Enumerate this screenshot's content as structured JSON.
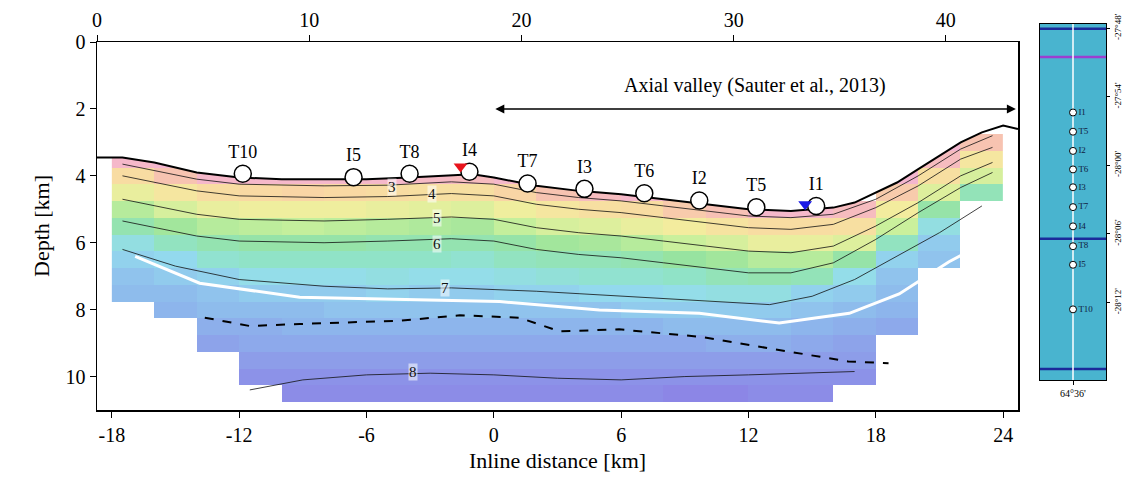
{
  "chart_data": {
    "type": "velocity_section",
    "x_label": "Inline distance [km]",
    "y_label": "Depth [km]",
    "xlim": [
      -18.7,
      24.7
    ],
    "xticks": [
      -18,
      -12,
      -6,
      0,
      6,
      12,
      18,
      24
    ],
    "x2lim": [
      0,
      43.4
    ],
    "x2ticks": [
      0,
      10,
      20,
      30,
      40
    ],
    "ylim": [
      11,
      0
    ],
    "yticks": [
      0,
      2,
      4,
      6,
      8,
      10
    ],
    "velocity": {
      "x": [
        -17,
        -15,
        -13,
        -11,
        -9,
        -7,
        -5,
        -3,
        -1,
        1,
        3,
        5,
        7,
        9,
        11,
        13,
        15,
        17,
        19,
        21,
        23
      ],
      "depth": [
        3,
        3.5,
        4,
        4.5,
        5,
        5.5,
        6,
        6.5,
        7,
        7.5,
        8,
        8.5,
        9,
        9.5,
        10,
        10.5
      ],
      "z": [
        [
          null,
          null,
          null,
          null,
          null,
          null,
          null,
          null,
          null,
          null,
          null,
          null,
          null,
          null,
          null,
          null,
          null,
          null,
          null,
          2.6,
          3.2
        ],
        [
          2.7,
          2.6,
          null,
          null,
          null,
          null,
          null,
          null,
          null,
          null,
          null,
          null,
          null,
          null,
          null,
          null,
          null,
          null,
          null,
          2.9,
          4.2
        ],
        [
          3.9,
          3.2,
          2.7,
          2.7,
          2.7,
          2.7,
          2.7,
          2.8,
          2.9,
          2.7,
          null,
          null,
          null,
          null,
          null,
          null,
          null,
          null,
          2.6,
          4.0,
          4.9
        ],
        [
          4.6,
          4.2,
          3.9,
          3.8,
          3.7,
          3.8,
          3.9,
          4.0,
          4.0,
          3.7,
          3.2,
          2.9,
          2.7,
          2.6,
          null,
          null,
          null,
          null,
          3.4,
          4.8,
          6.2
        ],
        [
          5.4,
          4.9,
          4.6,
          4.5,
          4.5,
          4.5,
          4.6,
          4.7,
          4.8,
          4.5,
          4.2,
          4.0,
          3.9,
          3.4,
          3.1,
          2.7,
          2.7,
          2.9,
          4.4,
          6.0,
          null
        ],
        [
          6.1,
          5.7,
          5.4,
          5.3,
          5.2,
          5.3,
          5.4,
          5.5,
          5.6,
          5.2,
          4.9,
          4.8,
          4.6,
          4.4,
          4.1,
          3.9,
          3.9,
          4.0,
          5.1,
          6.7,
          null
        ],
        [
          6.7,
          6.3,
          6.1,
          6.0,
          6.0,
          6.0,
          6.1,
          6.1,
          6.1,
          6.0,
          5.7,
          5.6,
          5.4,
          5.1,
          4.9,
          4.6,
          4.6,
          4.8,
          6.3,
          7.1,
          null
        ],
        [
          7.0,
          6.9,
          6.5,
          6.4,
          6.4,
          6.4,
          6.4,
          6.4,
          6.5,
          6.3,
          6.2,
          6.2,
          6.1,
          5.9,
          5.7,
          5.4,
          5.4,
          6.0,
          7.0,
          7.2,
          null
        ],
        [
          7.2,
          7.1,
          7.0,
          6.8,
          6.8,
          6.8,
          6.7,
          6.8,
          6.8,
          6.7,
          6.6,
          6.5,
          6.5,
          6.4,
          6.2,
          6.1,
          6.2,
          6.8,
          7.2,
          null,
          null
        ],
        [
          7.3,
          7.3,
          7.2,
          7.1,
          7.1,
          7.1,
          7.0,
          7.1,
          7.1,
          7.0,
          7.0,
          6.9,
          6.9,
          6.8,
          6.7,
          6.7,
          7.0,
          7.1,
          7.3,
          null,
          null
        ],
        [
          null,
          7.4,
          7.3,
          7.3,
          7.3,
          7.2,
          7.2,
          7.2,
          7.2,
          7.2,
          7.2,
          7.2,
          7.1,
          7.1,
          7.1,
          7.1,
          7.2,
          7.3,
          7.4,
          null,
          null
        ],
        [
          null,
          null,
          7.5,
          7.5,
          7.4,
          7.4,
          7.4,
          7.4,
          7.4,
          7.4,
          7.4,
          7.4,
          7.4,
          7.3,
          7.3,
          7.3,
          7.4,
          7.5,
          7.6,
          null,
          null
        ],
        [
          null,
          null,
          7.7,
          7.6,
          7.6,
          7.6,
          7.6,
          7.6,
          7.6,
          7.6,
          7.6,
          7.6,
          7.6,
          7.6,
          7.5,
          7.5,
          7.6,
          7.7,
          null,
          null,
          null
        ],
        [
          null,
          null,
          null,
          7.8,
          7.8,
          7.8,
          7.8,
          7.8,
          7.8,
          7.8,
          7.8,
          7.8,
          7.8,
          7.8,
          7.8,
          7.8,
          7.8,
          7.8,
          null,
          null,
          null
        ],
        [
          null,
          null,
          null,
          8.0,
          8.0,
          8.0,
          8.0,
          8.0,
          8.0,
          8.0,
          8.0,
          8.0,
          8.0,
          8.0,
          8.0,
          8.0,
          8.0,
          8.0,
          null,
          null,
          null
        ],
        [
          null,
          null,
          null,
          null,
          8.1,
          8.1,
          8.1,
          8.1,
          8.1,
          8.1,
          8.1,
          8.1,
          8.1,
          8.2,
          8.2,
          8.1,
          8.1,
          null,
          null,
          null,
          null
        ]
      ]
    },
    "contours": [
      {
        "value": 3,
        "label_x": -4.8,
        "label_depth": 4.33,
        "x": [
          -17.5,
          -14,
          -12,
          -8,
          -5,
          -2,
          0,
          2,
          4,
          6,
          8,
          10,
          12,
          14,
          16,
          18,
          20,
          22,
          23.5
        ],
        "depth": [
          3.65,
          4.1,
          4.25,
          4.3,
          4.28,
          4.18,
          4.25,
          4.5,
          4.65,
          4.75,
          4.9,
          5.05,
          5.2,
          5.25,
          5.15,
          4.7,
          4.0,
          3.2,
          2.8
        ]
      },
      {
        "value": 4,
        "label_x": -2.9,
        "label_depth": 4.55,
        "x": [
          -17.5,
          -14,
          -12,
          -8,
          -5,
          -2,
          0,
          2,
          4,
          6,
          8,
          10,
          12,
          14,
          16,
          18,
          20,
          22,
          23.5
        ],
        "depth": [
          4.0,
          4.45,
          4.6,
          4.65,
          4.62,
          4.53,
          4.6,
          4.85,
          5.0,
          5.1,
          5.25,
          5.4,
          5.55,
          5.6,
          5.45,
          4.95,
          4.3,
          3.5,
          3.15
        ]
      },
      {
        "value": 5,
        "label_x": -2.7,
        "label_depth": 5.26,
        "x": [
          -17.5,
          -14,
          -12,
          -8,
          -5,
          -2,
          0,
          2,
          4,
          6,
          8,
          10,
          12,
          14,
          16,
          18,
          20,
          22,
          23.5
        ],
        "depth": [
          4.7,
          5.15,
          5.3,
          5.35,
          5.3,
          5.23,
          5.3,
          5.55,
          5.7,
          5.8,
          5.95,
          6.1,
          6.25,
          6.3,
          6.1,
          5.5,
          4.8,
          4.0,
          3.6
        ]
      },
      {
        "value": 6,
        "label_x": -2.7,
        "label_depth": 6.03,
        "x": [
          -17.5,
          -14,
          -12,
          -8,
          -5,
          -2,
          0,
          2,
          4,
          6,
          8,
          10,
          12,
          14,
          16,
          18,
          20,
          22,
          23.5
        ],
        "depth": [
          5.35,
          5.8,
          5.95,
          6.0,
          5.95,
          5.88,
          5.95,
          6.2,
          6.35,
          6.45,
          6.6,
          6.75,
          6.9,
          6.9,
          6.6,
          5.9,
          5.1,
          4.35,
          3.9
        ]
      },
      {
        "value": 7,
        "label_x": -2.3,
        "label_depth": 7.34,
        "x": [
          -17.5,
          -15,
          -12,
          -8,
          -5,
          -2,
          2,
          6,
          10,
          13,
          15,
          17,
          19,
          21,
          23
        ],
        "depth": [
          6.2,
          6.7,
          7.1,
          7.3,
          7.38,
          7.35,
          7.45,
          7.6,
          7.75,
          7.85,
          7.6,
          7.1,
          6.4,
          5.7,
          4.9
        ]
      },
      {
        "value": 8,
        "label_x": -3.8,
        "label_depth": 9.87,
        "x": [
          -11.5,
          -9,
          -6,
          -3,
          0,
          3,
          6,
          9,
          12,
          15,
          17
        ],
        "depth": [
          10.4,
          10.1,
          9.95,
          9.9,
          9.95,
          10.05,
          10.1,
          10.0,
          9.95,
          9.9,
          9.85
        ]
      }
    ],
    "lines": [
      {
        "color": "#ffffff",
        "line_style": "solid",
        "x": [
          -16.9,
          -13.86,
          -9.15,
          -4.44,
          0.27,
          4.97,
          9.68,
          13.45,
          16.75,
          19.1,
          21.45,
          23.34
        ],
        "depth": [
          6.41,
          7.21,
          7.63,
          7.69,
          7.76,
          8.01,
          8.11,
          8.4,
          8.11,
          7.53,
          6.57,
          5.93
        ]
      },
      {
        "color": "#000000",
        "line_style": "dashed",
        "x": [
          -13.62,
          -11.5,
          -9.15,
          -4.44,
          -1.6,
          1.2,
          3.1,
          5.9,
          9.7,
          13.5,
          16.7,
          18.6
        ],
        "depth": [
          8.24,
          8.49,
          8.43,
          8.33,
          8.17,
          8.24,
          8.65,
          8.59,
          8.81,
          9.2,
          9.55,
          9.6
        ]
      }
    ],
    "seafloor": {
      "color": "#000000",
      "x": [
        -18.7,
        -17.5,
        -16,
        -14,
        -12,
        -10,
        -8,
        -6,
        -4,
        -2,
        -1,
        0,
        2,
        4,
        6,
        8,
        10,
        12,
        14,
        15,
        16,
        17,
        18,
        19,
        20,
        21,
        22,
        23,
        24,
        24.7
      ],
      "depth": [
        3.45,
        3.45,
        3.6,
        3.9,
        4.05,
        4.1,
        4.1,
        4.1,
        4.05,
        3.98,
        3.95,
        4.05,
        4.3,
        4.45,
        4.55,
        4.7,
        4.85,
        5.0,
        5.05,
        5.0,
        4.95,
        4.8,
        4.5,
        4.2,
        3.8,
        3.4,
        3.0,
        2.7,
        2.5,
        2.6
      ]
    },
    "stations": {
      "color": "#ffffff",
      "marker": "circle",
      "labels": [
        "T10",
        "I5",
        "T8",
        "I4",
        "T7",
        "I3",
        "T6",
        "I2",
        "T5",
        "I1"
      ],
      "x": [
        -11.83,
        -6.61,
        -3.97,
        -1.15,
        1.59,
        4.27,
        7.09,
        9.68,
        12.37,
        15.19
      ],
      "depth": [
        3.94,
        4.04,
        3.94,
        3.88,
        4.23,
        4.39,
        4.52,
        4.74,
        4.94,
        4.9
      ]
    },
    "triangles": [
      {
        "x": -1.57,
        "depth": 3.72,
        "color": "#e8141c",
        "marker": "triangle-down"
      },
      {
        "x": 14.67,
        "depth": 4.85,
        "color": "#1a1ae6",
        "marker": "triangle-down"
      }
    ],
    "annotation": {
      "text": "Axial valley (Sauter et al., 2013)",
      "x": 12.3,
      "depth": 1.3,
      "arrow_x": [
        0,
        24.6
      ],
      "arrow_depth": 2.0
    },
    "inset": {
      "color": "#49b4cf",
      "lon_lim": [
        64.56,
        64.64
      ],
      "lon_ticks": [
        {
          "value": 64.6,
          "label": "64°36'"
        }
      ],
      "lat_lim": [
        -28.313,
        -27.794
      ],
      "lat_ticks": [
        {
          "value": -27.8,
          "label": "-27°48'"
        },
        {
          "value": -27.9,
          "label": "-27°54'"
        },
        {
          "value": -28.0,
          "label": "-28°00'"
        },
        {
          "value": -28.1,
          "label": "-28°06'"
        },
        {
          "value": -28.2,
          "label": "-28°12'"
        }
      ],
      "profile": {
        "lon": 64.6,
        "color": "#ffffff"
      },
      "lines": [
        {
          "lat": -27.801,
          "color": "#1b2a9a"
        },
        {
          "lat": -27.842,
          "color": "#9b3fd0"
        },
        {
          "lat": -28.107,
          "color": "#1b2a9a"
        },
        {
          "lat": -28.297,
          "color": "#1b2a9a"
        }
      ],
      "stations": {
        "color": "#ffffff",
        "marker": "circle",
        "labels": [
          "I1",
          "T5",
          "I2",
          "T6",
          "I3",
          "T7",
          "I4",
          "T8",
          "I5",
          "T10"
        ],
        "lat": [
          -27.923,
          -27.951,
          -27.979,
          -28.006,
          -28.032,
          -28.061,
          -28.089,
          -28.118,
          -28.145,
          -28.21
        ]
      }
    }
  }
}
